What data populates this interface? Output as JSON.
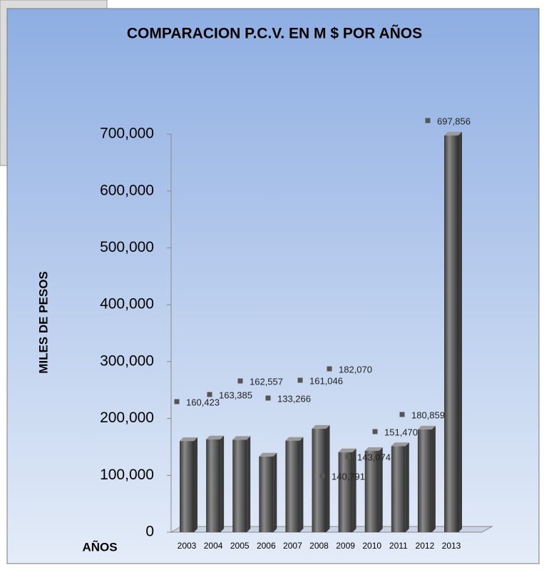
{
  "chart_data": {
    "type": "bar",
    "title": "COMPARACION P.C.V. EN  M $  POR AÑOS",
    "y_label": "MILES DE PESOS",
    "x_label": "AÑOS",
    "categories": [
      "2003",
      "2004",
      "2005",
      "2006",
      "2007",
      "2008",
      "2009",
      "2010",
      "2011",
      "2012",
      "2013"
    ],
    "values": [
      160423,
      163385,
      162557,
      133266,
      161046,
      182070,
      140791,
      143074,
      151470,
      180859,
      697856
    ],
    "value_labels": [
      "160,423",
      "163,385",
      "162,557",
      "133,266",
      "161,046",
      "182,070",
      "140,791",
      "143,074",
      "151,470",
      "180,859",
      "697,856"
    ],
    "color": "#5a5a5a",
    "ylim": [
      0,
      700000
    ],
    "yticks": [
      0,
      {
        "value": 100000,
        "label": "100,000"
      },
      {
        "value": 200000,
        "label": "200,000"
      },
      {
        "value": 300000,
        "label": "300,000"
      },
      {
        "value": 400000,
        "label": "400,000"
      },
      {
        "value": 500000,
        "label": "500,000"
      },
      {
        "value": 600000,
        "label": "600,000"
      },
      {
        "value": 700000,
        "label": "700,000"
      }
    ],
    "grid": false
  }
}
